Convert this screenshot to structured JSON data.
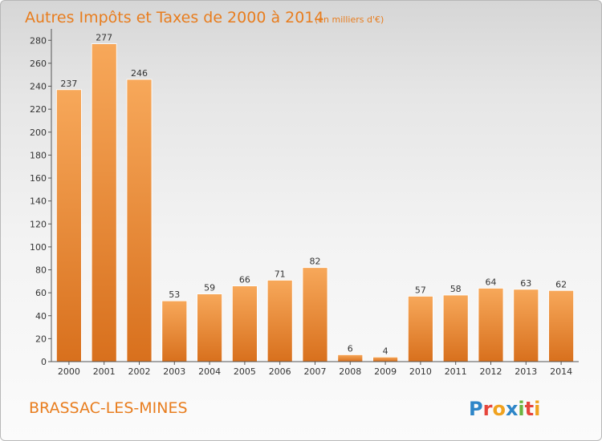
{
  "chart_data": {
    "type": "bar",
    "title": "Autres Impôts et Taxes de 2000 à 2014",
    "subtitle": "(en milliers d'€)",
    "categories": [
      "2000",
      "2001",
      "2002",
      "2003",
      "2004",
      "2005",
      "2006",
      "2007",
      "2008",
      "2009",
      "2010",
      "2011",
      "2012",
      "2013",
      "2014"
    ],
    "values": [
      237,
      277,
      246,
      53,
      59,
      66,
      71,
      82,
      6,
      4,
      57,
      58,
      64,
      63,
      62
    ],
    "ylim": [
      0,
      290
    ],
    "yticks": [
      0,
      20,
      40,
      60,
      80,
      100,
      120,
      140,
      160,
      180,
      200,
      220,
      240,
      260,
      280
    ],
    "grid": false,
    "legend": "none",
    "bar_color": "#e8872c"
  },
  "footer": {
    "commune": "BRASSAC-LES-MINES",
    "brand": "Proxiti"
  },
  "colors": {
    "accent": "#e87d1e",
    "bar_light": "#f7a85a",
    "bar_dark": "#d8701d"
  }
}
